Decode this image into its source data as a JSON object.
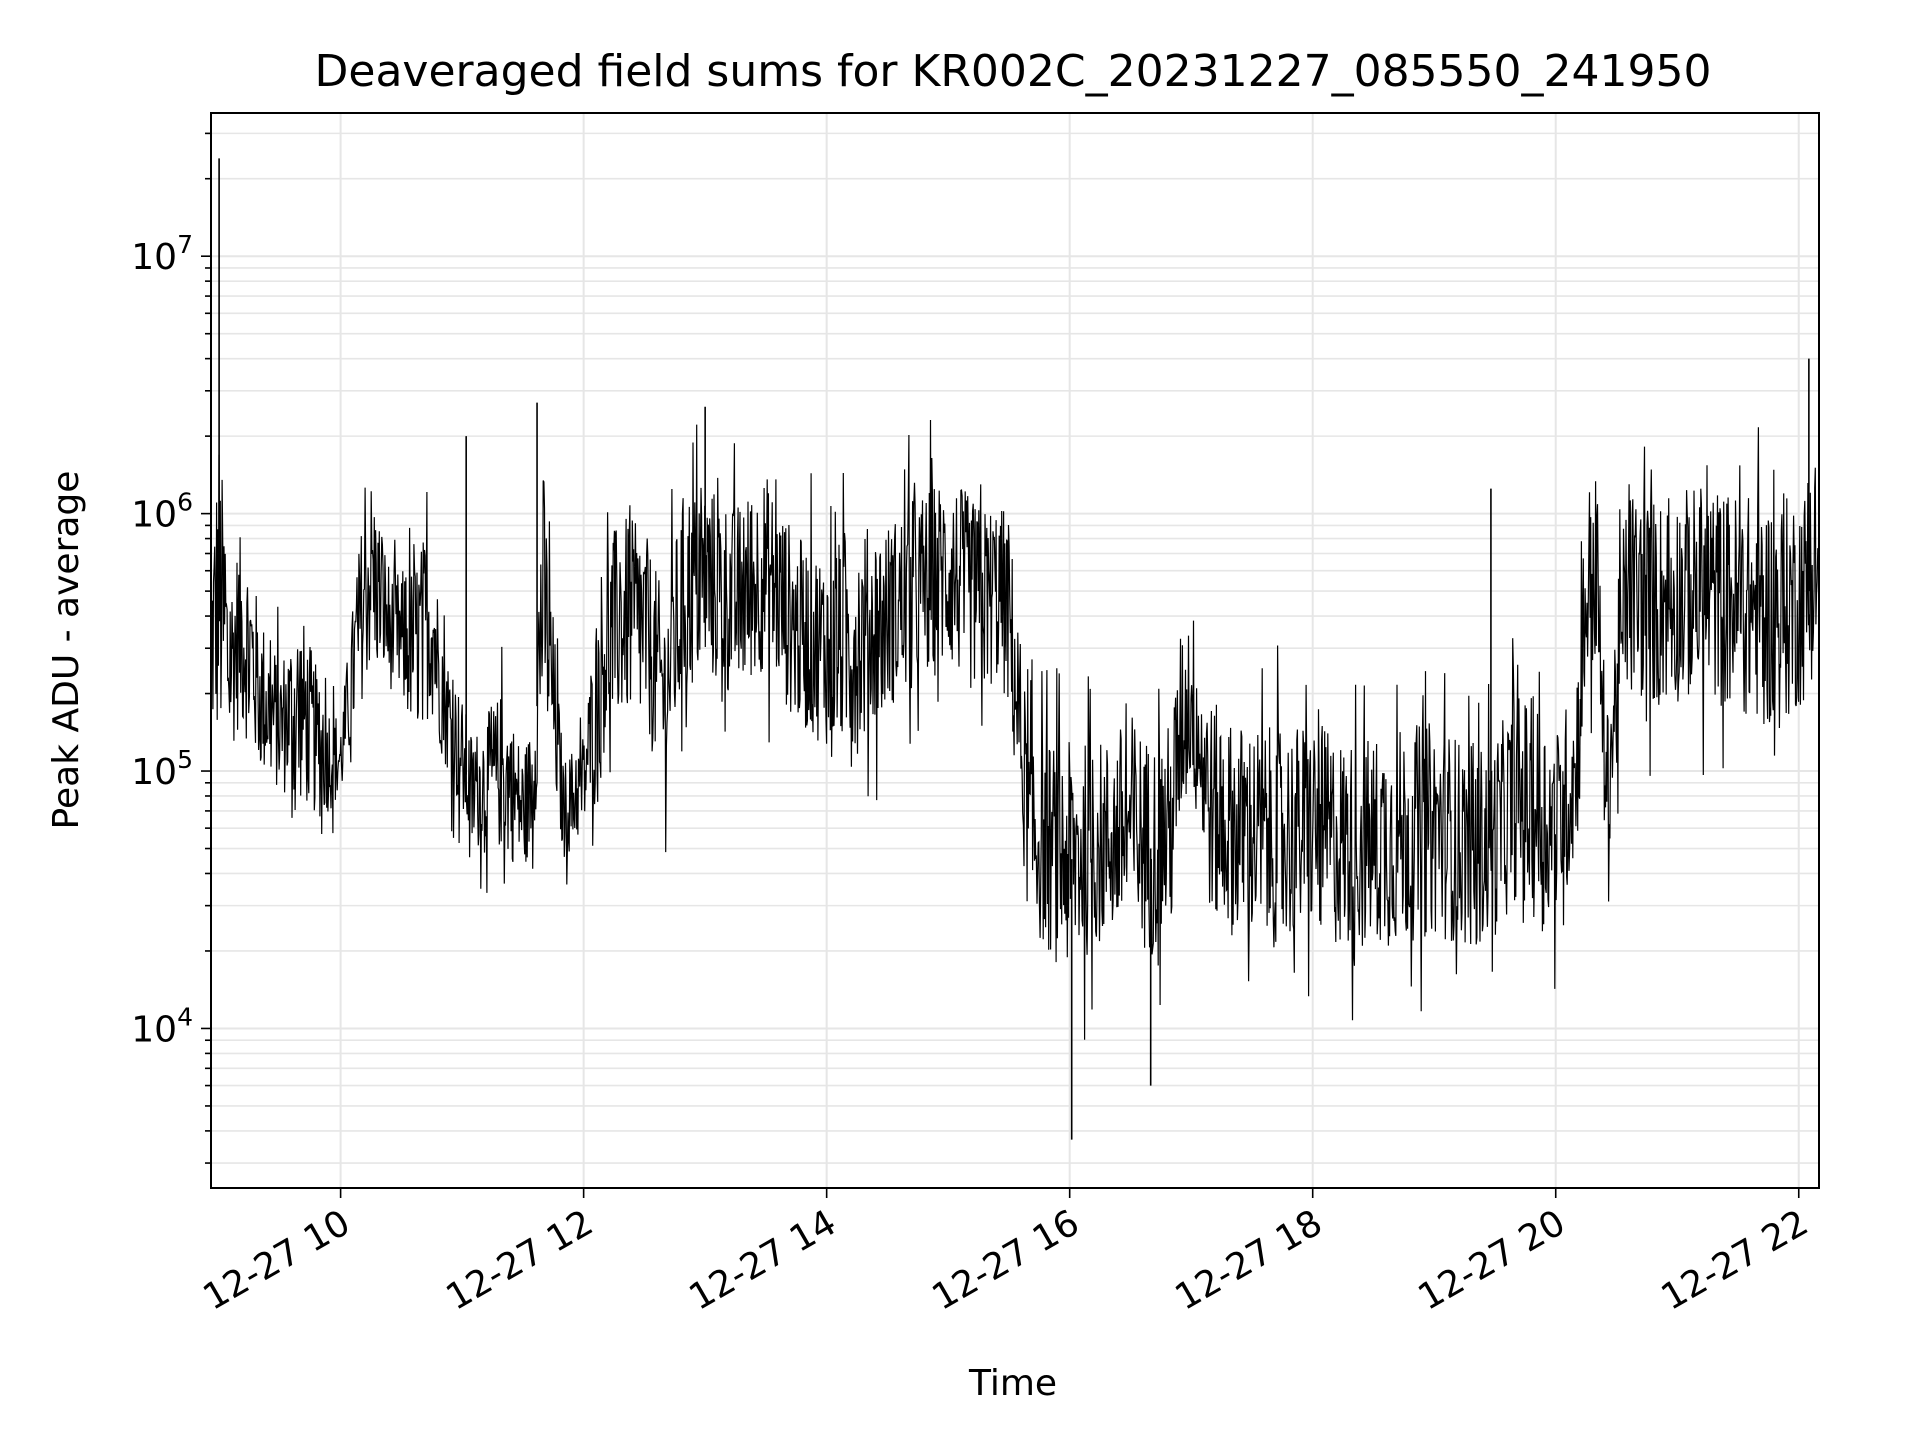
{
  "chart_data": {
    "type": "line",
    "title": "Deaveraged field sums for KR002C_20231227_085550_241950",
    "xlabel": "Time",
    "ylabel": "Peak ADU - average",
    "y_scale": "log",
    "ylim": [
      2400,
      36000000
    ],
    "xlim": [
      "2023-12-27 08:56",
      "2023-12-27 22:10"
    ],
    "x_ticks": [
      "2023-12-27 10:00",
      "2023-12-27 12:00",
      "2023-12-27 14:00",
      "2023-12-27 16:00",
      "2023-12-27 18:00",
      "2023-12-27 20:00",
      "2023-12-27 22:00"
    ],
    "x_tick_labels": [
      "12-27 10",
      "12-27 12",
      "12-27 14",
      "12-27 16",
      "12-27 18",
      "12-27 20",
      "12-27 22"
    ],
    "y_ticks": [
      10000,
      100000,
      1000000,
      10000000
    ],
    "y_tick_labels": [
      {
        "base": "10",
        "exp": "4"
      },
      {
        "base": "10",
        "exp": "5"
      },
      {
        "base": "10",
        "exp": "6"
      },
      {
        "base": "10",
        "exp": "7"
      }
    ],
    "grid": true,
    "legend": false,
    "line_color": "#000000",
    "grid_color": "#e6e6e6",
    "series": [
      {
        "color": "#000000",
        "x": [
          "2023-12-27 08:56",
          "2023-12-27 09:00",
          "2023-12-27 09:05",
          "2023-12-27 09:10",
          "2023-12-27 09:15",
          "2023-12-27 09:20",
          "2023-12-27 09:30",
          "2023-12-27 09:40",
          "2023-12-27 09:50",
          "2023-12-27 10:00",
          "2023-12-27 10:10",
          "2023-12-27 10:15",
          "2023-12-27 10:25",
          "2023-12-27 10:35",
          "2023-12-27 10:45",
          "2023-12-27 10:50",
          "2023-12-27 11:00",
          "2023-12-27 11:05",
          "2023-12-27 11:10",
          "2023-12-27 11:20",
          "2023-12-27 11:30",
          "2023-12-27 11:35",
          "2023-12-27 11:40",
          "2023-12-27 11:50",
          "2023-12-27 12:00",
          "2023-12-27 12:10",
          "2023-12-27 12:20",
          "2023-12-27 12:30",
          "2023-12-27 12:40",
          "2023-12-27 12:50",
          "2023-12-27 13:00",
          "2023-12-27 13:15",
          "2023-12-27 13:30",
          "2023-12-27 13:45",
          "2023-12-27 14:00",
          "2023-12-27 14:15",
          "2023-12-27 14:30",
          "2023-12-27 14:45",
          "2023-12-27 15:00",
          "2023-12-27 15:15",
          "2023-12-27 15:25",
          "2023-12-27 15:30",
          "2023-12-27 15:40",
          "2023-12-27 15:50",
          "2023-12-27 16:00",
          "2023-12-27 16:10",
          "2023-12-27 16:20",
          "2023-12-27 16:30",
          "2023-12-27 16:40",
          "2023-12-27 16:50",
          "2023-12-27 16:55",
          "2023-12-27 17:00",
          "2023-12-27 17:10",
          "2023-12-27 17:20",
          "2023-12-27 17:40",
          "2023-12-27 18:00",
          "2023-12-27 18:20",
          "2023-12-27 18:40",
          "2023-12-27 19:00",
          "2023-12-27 19:20",
          "2023-12-27 19:30",
          "2023-12-27 19:40",
          "2023-12-27 19:50",
          "2023-12-27 20:00",
          "2023-12-27 20:10",
          "2023-12-27 20:15",
          "2023-12-27 20:20",
          "2023-12-27 20:25",
          "2023-12-27 20:35",
          "2023-12-27 20:50",
          "2023-12-27 21:10",
          "2023-12-27 21:30",
          "2023-12-27 21:50",
          "2023-12-27 22:05",
          "2023-12-27 22:10"
        ],
        "y": [
          300000,
          500000,
          250000,
          350000,
          300000,
          200000,
          150000,
          180000,
          120000,
          110000,
          400000,
          600000,
          350000,
          300000,
          400000,
          200000,
          110000,
          80000,
          90000,
          100000,
          70000,
          90000,
          500000,
          70000,
          90000,
          300000,
          400000,
          350000,
          200000,
          500000,
          550000,
          450000,
          600000,
          350000,
          300000,
          320000,
          400000,
          500000,
          600000,
          450000,
          500000,
          400000,
          60000,
          50000,
          45000,
          50000,
          55000,
          60000,
          50000,
          60000,
          150000,
          200000,
          70000,
          60000,
          55000,
          60000,
          50000,
          55000,
          60000,
          50000,
          55000,
          80000,
          70000,
          60000,
          100000,
          500000,
          600000,
          80000,
          500000,
          450000,
          500000,
          450000,
          400000,
          500000,
          600000
        ],
        "low_envelope": [
          100000,
          80000,
          90000,
          120000,
          100000,
          80000,
          70000,
          60000,
          55000,
          70000,
          150000,
          200000,
          180000,
          120000,
          130000,
          100000,
          55000,
          40000,
          45000,
          40000,
          35000,
          45000,
          120000,
          40000,
          50000,
          90000,
          130000,
          110000,
          70000,
          150000,
          180000,
          150000,
          200000,
          120000,
          100000,
          90000,
          140000,
          170000,
          200000,
          150000,
          180000,
          130000,
          20000,
          15000,
          12000,
          15000,
          18000,
          16000,
          15000,
          18000,
          50000,
          70000,
          20000,
          18000,
          16000,
          18000,
          15000,
          16000,
          18000,
          16000,
          18000,
          25000,
          20000,
          20000,
          35000,
          150000,
          200000,
          35000,
          150000,
          140000,
          150000,
          130000,
          110000,
          150000,
          300000
        ],
        "spikes": [
          {
            "x": "2023-12-27 09:00",
            "y": 24000000
          },
          {
            "x": "2023-12-27 11:02",
            "y": 2000000
          },
          {
            "x": "2023-12-27 11:37",
            "y": 2700000
          },
          {
            "x": "2023-12-27 13:00",
            "y": 2600000
          },
          {
            "x": "2023-12-27 16:01",
            "y": 3700
          },
          {
            "x": "2023-12-27 16:40",
            "y": 6000
          },
          {
            "x": "2023-12-27 19:28",
            "y": 1250000
          },
          {
            "x": "2023-12-27 22:05",
            "y": 4000000
          }
        ]
      }
    ]
  }
}
